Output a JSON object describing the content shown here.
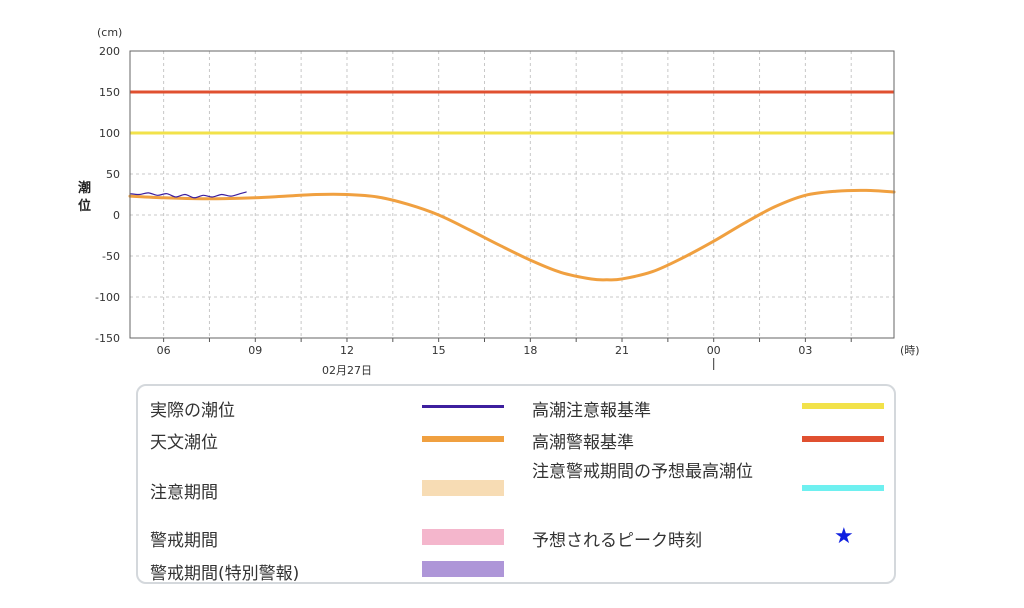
{
  "chart_data": {
    "type": "line",
    "unit_label": "(cm)",
    "ylabel": "潮位",
    "xlabel_unit": "(時)",
    "ylim": [
      -150,
      200
    ],
    "yticks": [
      200,
      150,
      100,
      50,
      0,
      -50,
      -100,
      -150
    ],
    "x_range_hours": [
      4.9,
      29.9
    ],
    "xticks": [
      {
        "hour": 6,
        "label": "06"
      },
      {
        "hour": 9,
        "label": "09"
      },
      {
        "hour": 12,
        "label": "12"
      },
      {
        "hour": 15,
        "label": "15"
      },
      {
        "hour": 18,
        "label": "18"
      },
      {
        "hour": 21,
        "label": "21"
      },
      {
        "hour": 24,
        "label": "00"
      },
      {
        "hour": 27,
        "label": "03"
      }
    ],
    "date_label": {
      "hour": 12,
      "label": "02月27日"
    },
    "day_boundary_hour": 24,
    "series": [
      {
        "key": "observed",
        "color": "#3d1f9e",
        "x": [
          4.9,
          5.2,
          5.5,
          5.8,
          6.1,
          6.4,
          6.7,
          7.0,
          7.3,
          7.6,
          7.9,
          8.2,
          8.5,
          8.7
        ],
        "y": [
          26,
          25,
          27,
          24,
          26,
          22,
          25,
          21,
          24,
          22,
          25,
          23,
          26,
          28
        ]
      },
      {
        "key": "astronomical",
        "color": "#f0a040",
        "x": [
          4.9,
          6,
          7,
          8,
          9,
          10,
          11,
          12,
          13,
          14,
          15,
          16,
          17,
          18,
          19,
          20,
          20.5,
          21,
          22,
          23,
          24,
          25,
          26,
          27,
          28,
          29,
          29.9
        ],
        "y": [
          23,
          21,
          20,
          20,
          21,
          23,
          25,
          25,
          22,
          13,
          0,
          -18,
          -37,
          -55,
          -70,
          -78,
          -79,
          -78,
          -69,
          -52,
          -32,
          -10,
          10,
          24,
          29,
          30,
          28
        ]
      }
    ],
    "reference_lines": [
      {
        "key": "warning",
        "value": 150,
        "color": "#e05030"
      },
      {
        "key": "caution",
        "value": 100,
        "color": "#f2e24a"
      }
    ],
    "grid": true
  },
  "legend": {
    "actual": "実際の潮位",
    "astro": "天文潮位",
    "caution_period": "注意期間",
    "warning_period": "警戒期間",
    "special_period": "警戒期間(特別警報)",
    "caution_ref": "高潮注意報基準",
    "warning_ref": "高潮警報基準",
    "peak_forecast": "注意警戒期間の予想最高潮位",
    "peak_time": "予想されるピーク時刻",
    "colors": {
      "actual": "#3d1f9e",
      "astro": "#f0a040",
      "caution_period": "#f7dcb4",
      "warning_period": "#f4b6cc",
      "special_period": "#ae96d8",
      "caution_ref": "#f2e24a",
      "warning_ref": "#e05030",
      "peak_forecast": "#6ef0f0",
      "peak_time": "#1020e0"
    },
    "star": "★"
  }
}
